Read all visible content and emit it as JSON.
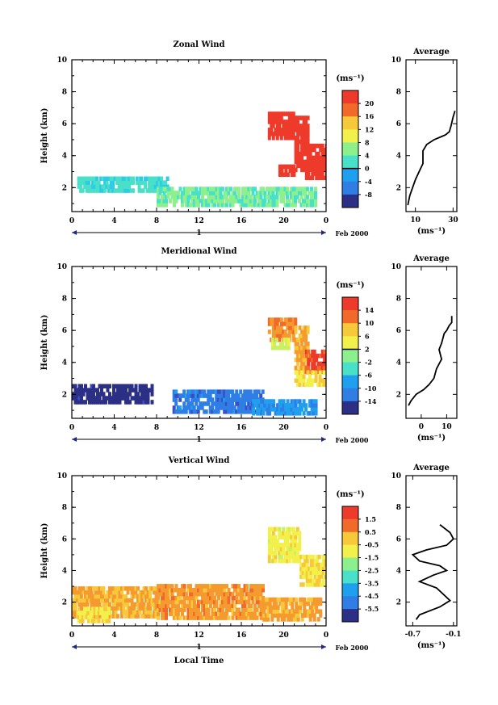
{
  "chart_data": [
    {
      "type": "heatmap",
      "title": "Zonal Wind",
      "ylabel": "Height (km)",
      "x_date_label": "Feb 2000",
      "day_label": "1",
      "xlim": [
        0,
        24
      ],
      "ylim": [
        0.5,
        10
      ],
      "xticks": [
        "0",
        "4",
        "8",
        "12",
        "16",
        "20",
        "0"
      ],
      "yticks": [
        "2",
        "4",
        "6",
        "8",
        "10"
      ],
      "colorbar": {
        "unit": "(ms⁻¹)",
        "ticks": [
          "20",
          "16",
          "12",
          "8",
          "4",
          "0",
          "-4",
          "-8"
        ],
        "range": [
          -10,
          22
        ]
      },
      "regions": [
        {
          "x": [
            0.5,
            9
          ],
          "y": [
            1.7,
            2.5
          ],
          "value": 3
        },
        {
          "x": [
            8,
            23
          ],
          "y": [
            0.8,
            1.9
          ],
          "value": 5
        },
        {
          "x": [
            18.5,
            21
          ],
          "y": [
            5.0,
            6.7
          ],
          "value": 22
        },
        {
          "x": [
            21,
            22.3
          ],
          "y": [
            3.0,
            6.3
          ],
          "value": 22
        },
        {
          "x": [
            22,
            24
          ],
          "y": [
            2.5,
            4.7
          ],
          "value": 22
        },
        {
          "x": [
            19.5,
            21
          ],
          "y": [
            2.7,
            3.3
          ],
          "value": 21
        }
      ],
      "average": {
        "title": "Average",
        "xlabel": "(ms⁻¹)",
        "xticks": [
          "10",
          "30"
        ],
        "xlim": [
          5,
          32
        ],
        "x": [
          6,
          7,
          10,
          12,
          14,
          14,
          16,
          20,
          24,
          26,
          28,
          29,
          30,
          31
        ],
        "y": [
          0.9,
          1.5,
          2.5,
          3.0,
          3.5,
          4.3,
          4.7,
          5.0,
          5.2,
          5.3,
          5.5,
          5.9,
          6.4,
          6.8
        ]
      }
    },
    {
      "type": "heatmap",
      "title": "Meridional Wind",
      "ylabel": "Height (km)",
      "x_date_label": "Feb 2000",
      "day_label": "1",
      "xlim": [
        0,
        24
      ],
      "ylim": [
        0.5,
        10
      ],
      "xticks": [
        "0",
        "4",
        "8",
        "12",
        "16",
        "20",
        "0"
      ],
      "yticks": [
        "2",
        "4",
        "6",
        "8",
        "10"
      ],
      "colorbar": {
        "unit": "(ms⁻¹)",
        "ticks": [
          "14",
          "10",
          "6",
          "2",
          "-2",
          "-6",
          "-10",
          "-14"
        ],
        "range": [
          -16,
          16
        ]
      },
      "regions": [
        {
          "x": [
            0,
            7.5
          ],
          "y": [
            1.4,
            2.6
          ],
          "value": -15
        },
        {
          "x": [
            9.5,
            18
          ],
          "y": [
            0.8,
            2.3
          ],
          "value": -10
        },
        {
          "x": [
            17,
            23
          ],
          "y": [
            0.7,
            1.5
          ],
          "value": -8
        },
        {
          "x": [
            18.5,
            21
          ],
          "y": [
            5.3,
            6.7
          ],
          "value": 11
        },
        {
          "x": [
            18.8,
            20.5
          ],
          "y": [
            4.8,
            5.4
          ],
          "value": 3
        },
        {
          "x": [
            21,
            22.3
          ],
          "y": [
            3.3,
            6.3
          ],
          "value": 9
        },
        {
          "x": [
            22,
            24
          ],
          "y": [
            3.3,
            4.8
          ],
          "value": 14
        },
        {
          "x": [
            21,
            23.8
          ],
          "y": [
            2.5,
            3.4
          ],
          "value": 6
        }
      ],
      "average": {
        "title": "Average",
        "xlabel": "(ms⁻¹)",
        "xticks": [
          "0",
          "10"
        ],
        "xlim": [
          -6,
          14
        ],
        "x": [
          -5,
          -4,
          -2,
          1,
          3,
          5,
          6,
          8,
          7,
          8,
          9,
          10,
          11,
          12,
          12
        ],
        "y": [
          1.3,
          1.6,
          2.0,
          2.3,
          2.6,
          3.0,
          3.6,
          4.2,
          4.8,
          5.2,
          5.8,
          6.0,
          6.3,
          6.5,
          6.9
        ]
      }
    },
    {
      "type": "heatmap",
      "title": "Vertical Wind",
      "ylabel": "Height (km)",
      "xlabel": "Local Time",
      "x_date_label": "Feb 2000",
      "day_label": "1",
      "xlim": [
        0,
        24
      ],
      "ylim": [
        0.5,
        10
      ],
      "xticks": [
        "0",
        "4",
        "8",
        "12",
        "16",
        "20",
        "0"
      ],
      "yticks": [
        "2",
        "4",
        "6",
        "8",
        "10"
      ],
      "colorbar": {
        "unit": "(ms⁻¹)",
        "ticks": [
          "1.5",
          "0.5",
          "-0.5",
          "-1.5",
          "-2.5",
          "-3.5",
          "-4.5",
          "-5.5"
        ],
        "range": [
          -6.5,
          2.5
        ]
      },
      "regions": [
        {
          "x": [
            0,
            8
          ],
          "y": [
            1.0,
            2.8
          ],
          "value": 0.5
        },
        {
          "x": [
            8,
            18
          ],
          "y": [
            0.9,
            3.0
          ],
          "value": 0.8
        },
        {
          "x": [
            0.5,
            3.5
          ],
          "y": [
            0.7,
            1.6
          ],
          "value": -0.3
        },
        {
          "x": [
            18.5,
            21.5
          ],
          "y": [
            4.5,
            6.7
          ],
          "value": -0.6
        },
        {
          "x": [
            21.5,
            24
          ],
          "y": [
            3.0,
            5.0
          ],
          "value": -0.4
        },
        {
          "x": [
            18,
            23.5
          ],
          "y": [
            0.8,
            2.3
          ],
          "value": 0.6
        }
      ],
      "average": {
        "title": "Average",
        "xlabel": "(ms⁻¹)",
        "xticks": [
          "-0.7",
          "-0.1"
        ],
        "xlim": [
          -0.8,
          -0.05
        ],
        "x": [
          -0.3,
          -0.15,
          -0.1,
          -0.2,
          -0.5,
          -0.7,
          -0.6,
          -0.3,
          -0.2,
          -0.4,
          -0.6,
          -0.35,
          -0.25,
          -0.15,
          -0.3,
          -0.6,
          -0.65
        ],
        "y": [
          6.9,
          6.4,
          6.0,
          5.6,
          5.3,
          5.0,
          4.6,
          4.3,
          4.0,
          3.7,
          3.3,
          2.9,
          2.5,
          2.1,
          1.7,
          1.2,
          0.9
        ]
      }
    }
  ]
}
